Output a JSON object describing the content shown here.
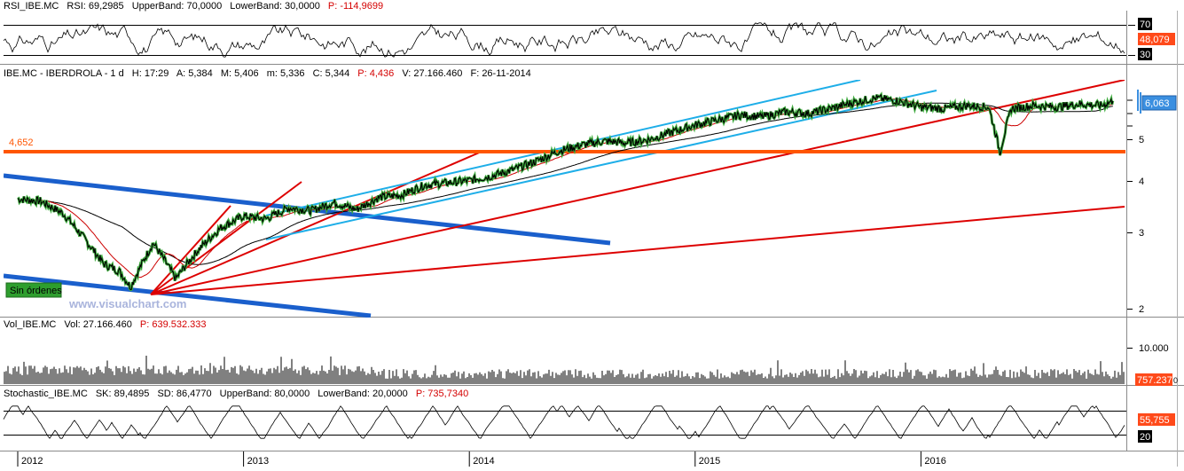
{
  "colors": {
    "price_line": "#000000",
    "ma_fast": "#cc0000",
    "ma_slow": "#000000",
    "level_line": "#ff5500",
    "fan_lines": "#dd0000",
    "channel_cyan": "#1eaee8",
    "channel_blue": "#1a5fcc",
    "badge_blue": "#3b8fe0",
    "badge_red": "#ff4a1a",
    "no_orders": "#2e9e2e",
    "title_value_red": "#d40000"
  },
  "rsi": {
    "name": "RSI_IBE.MC",
    "rsi_label": "RSI: 69,2985",
    "upper_label": "UpperBand: 70,0000",
    "lower_label": "LowerBand: 30,0000",
    "p_label": "P: -114,9699",
    "axis": [
      "70",
      "30"
    ],
    "current": "48,079"
  },
  "price": {
    "name": "IBE.MC - IBERDROLA - 1 d",
    "h_time": "H: 17:29",
    "a": "A: 5,384",
    "m": "M: 5,406",
    "mm": "m: 5,336",
    "c": "C: 5,344",
    "p": "P: 4,436",
    "v": "V: 27.166.460",
    "f": "F: 26-11-2014",
    "level_label": "4,652",
    "current": "6,063",
    "watermark": "www.visualchart.com",
    "badge": "Sin órdenes",
    "axis": [
      "5",
      "4",
      "3",
      "2"
    ]
  },
  "volume": {
    "name": "Vol_IBE.MC",
    "vol": "Vol: 27.166.460",
    "p": "P: 639.532.333",
    "axis_label": "10.000",
    "current": "757.237",
    "current_suffix": "0"
  },
  "stochastic": {
    "name": "Stochastic_IBE.MC",
    "sk": "SK: 89,4895",
    "sd": "SD: 86,4770",
    "upper": "UpperBand: 80,0000",
    "lower": "LowerBand: 20,0000",
    "p": "P: 735,7340",
    "current": "55,755",
    "axis_low": "20"
  },
  "x_axis": [
    "2012",
    "2013",
    "2014",
    "2015",
    "2016"
  ],
  "chart_data": {
    "type": "line",
    "title": "IBE.MC - IBERDROLA - 1 d",
    "x_ticks": [
      "2012",
      "2013",
      "2014",
      "2015",
      "2016"
    ],
    "y_ticks": [
      "2",
      "3",
      "4",
      "5"
    ],
    "y_scale": "log",
    "ylim": [
      1.9,
      6.5
    ],
    "horizontal_level": 4.652,
    "series": [
      {
        "values": [
          [
            2012.0,
            3.62
          ],
          [
            2012.1,
            3.58
          ],
          [
            2012.2,
            3.35
          ],
          [
            2012.3,
            2.9
          ],
          [
            2012.38,
            2.55
          ],
          [
            2012.45,
            2.45
          ],
          [
            2012.5,
            2.25
          ],
          [
            2012.6,
            2.85
          ],
          [
            2012.7,
            2.35
          ],
          [
            2012.8,
            2.75
          ],
          [
            2012.9,
            3.1
          ],
          [
            2013.0,
            3.3
          ],
          [
            2013.1,
            3.25
          ],
          [
            2013.2,
            3.45
          ],
          [
            2013.3,
            3.4
          ],
          [
            2013.4,
            3.55
          ],
          [
            2013.5,
            3.42
          ],
          [
            2013.6,
            3.65
          ],
          [
            2013.7,
            3.7
          ],
          [
            2013.8,
            3.9
          ],
          [
            2013.9,
            3.95
          ],
          [
            2014.0,
            4.0
          ],
          [
            2014.1,
            4.1
          ],
          [
            2014.2,
            4.25
          ],
          [
            2014.3,
            4.45
          ],
          [
            2014.4,
            4.7
          ],
          [
            2014.5,
            4.85
          ],
          [
            2014.6,
            4.95
          ],
          [
            2014.7,
            4.9
          ],
          [
            2014.8,
            5.0
          ],
          [
            2014.9,
            5.2
          ],
          [
            2015.0,
            5.4
          ],
          [
            2015.1,
            5.55
          ],
          [
            2015.2,
            5.7
          ],
          [
            2015.3,
            5.65
          ],
          [
            2015.4,
            5.8
          ],
          [
            2015.5,
            5.75
          ],
          [
            2015.6,
            5.9
          ],
          [
            2015.7,
            6.1
          ],
          [
            2015.8,
            6.25
          ],
          [
            2015.9,
            6.15
          ],
          [
            2016.0,
            5.95
          ],
          [
            2016.1,
            5.9
          ],
          [
            2016.2,
            6.0
          ],
          [
            2016.3,
            5.95
          ],
          [
            2016.35,
            4.65
          ],
          [
            2016.4,
            5.9
          ],
          [
            2016.5,
            6.0
          ],
          [
            2016.6,
            5.95
          ],
          [
            2016.7,
            6.05
          ],
          [
            2016.8,
            6.0
          ],
          [
            2016.85,
            6.15
          ]
        ]
      }
    ]
  }
}
